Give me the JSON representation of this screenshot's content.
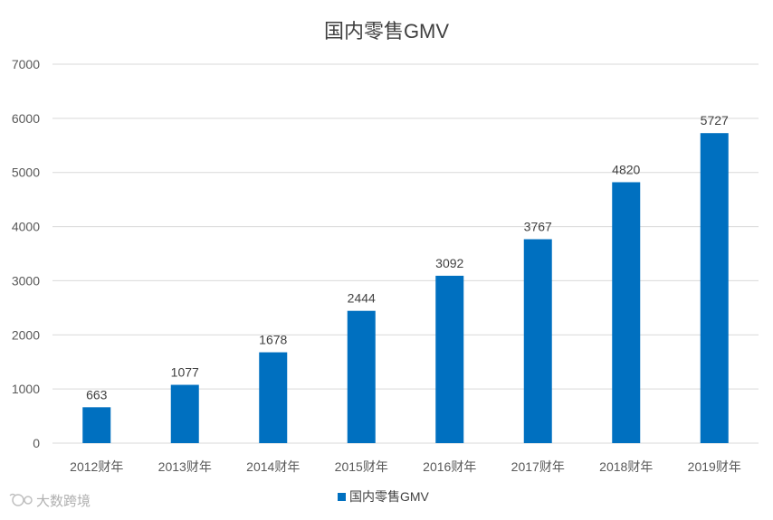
{
  "chart_data": {
    "type": "bar",
    "title": "国内零售GMV",
    "categories": [
      "2012财年",
      "2013财年",
      "2014财年",
      "2015财年",
      "2016财年",
      "2017财年",
      "2018财年",
      "2019财年"
    ],
    "series": [
      {
        "name": "国内零售GMV",
        "values": [
          663,
          1077,
          1678,
          2444,
          3092,
          3767,
          4820,
          5727
        ],
        "color": "#0070c0"
      }
    ],
    "ylim": [
      0,
      7000
    ],
    "yticks": [
      0,
      1000,
      2000,
      3000,
      4000,
      5000,
      6000,
      7000
    ],
    "grid": true,
    "legend_position": "bottom",
    "data_labels": true
  },
  "watermark": {
    "text": "大数跨境"
  }
}
